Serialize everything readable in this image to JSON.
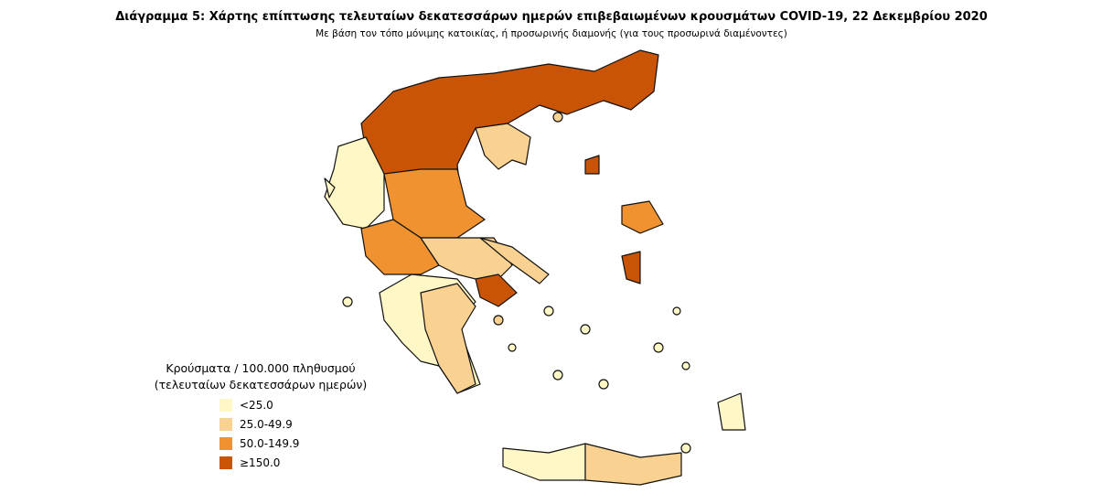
{
  "title": "Διάγραμμα 5: Χάρτης επίπτωσης τελευταίων δεκατεσσάρων ημερών επιβεβαιωμένων κρουσμάτων COVID-19, 22 Δεκεμβρίου 2020",
  "subtitle": "Με βάση τον τόπο μόνιμης κατοικίας, ή προσωρινής διαμονής (για τους προσωρινά διαμένοντες)",
  "legend": {
    "title": [
      "Κρούσματα / 100.000 πληθυσμού",
      "(τελευταίων δεκατεσσάρων ημερών)"
    ],
    "items": [
      {
        "label": "<25.0",
        "color": "#fff7c6"
      },
      {
        "label": "25.0-49.9",
        "color": "#f9d190"
      },
      {
        "label": "50.0-149.9",
        "color": "#ef922f"
      },
      {
        "label": "≥150.0",
        "color": "#c95405"
      }
    ]
  }
}
